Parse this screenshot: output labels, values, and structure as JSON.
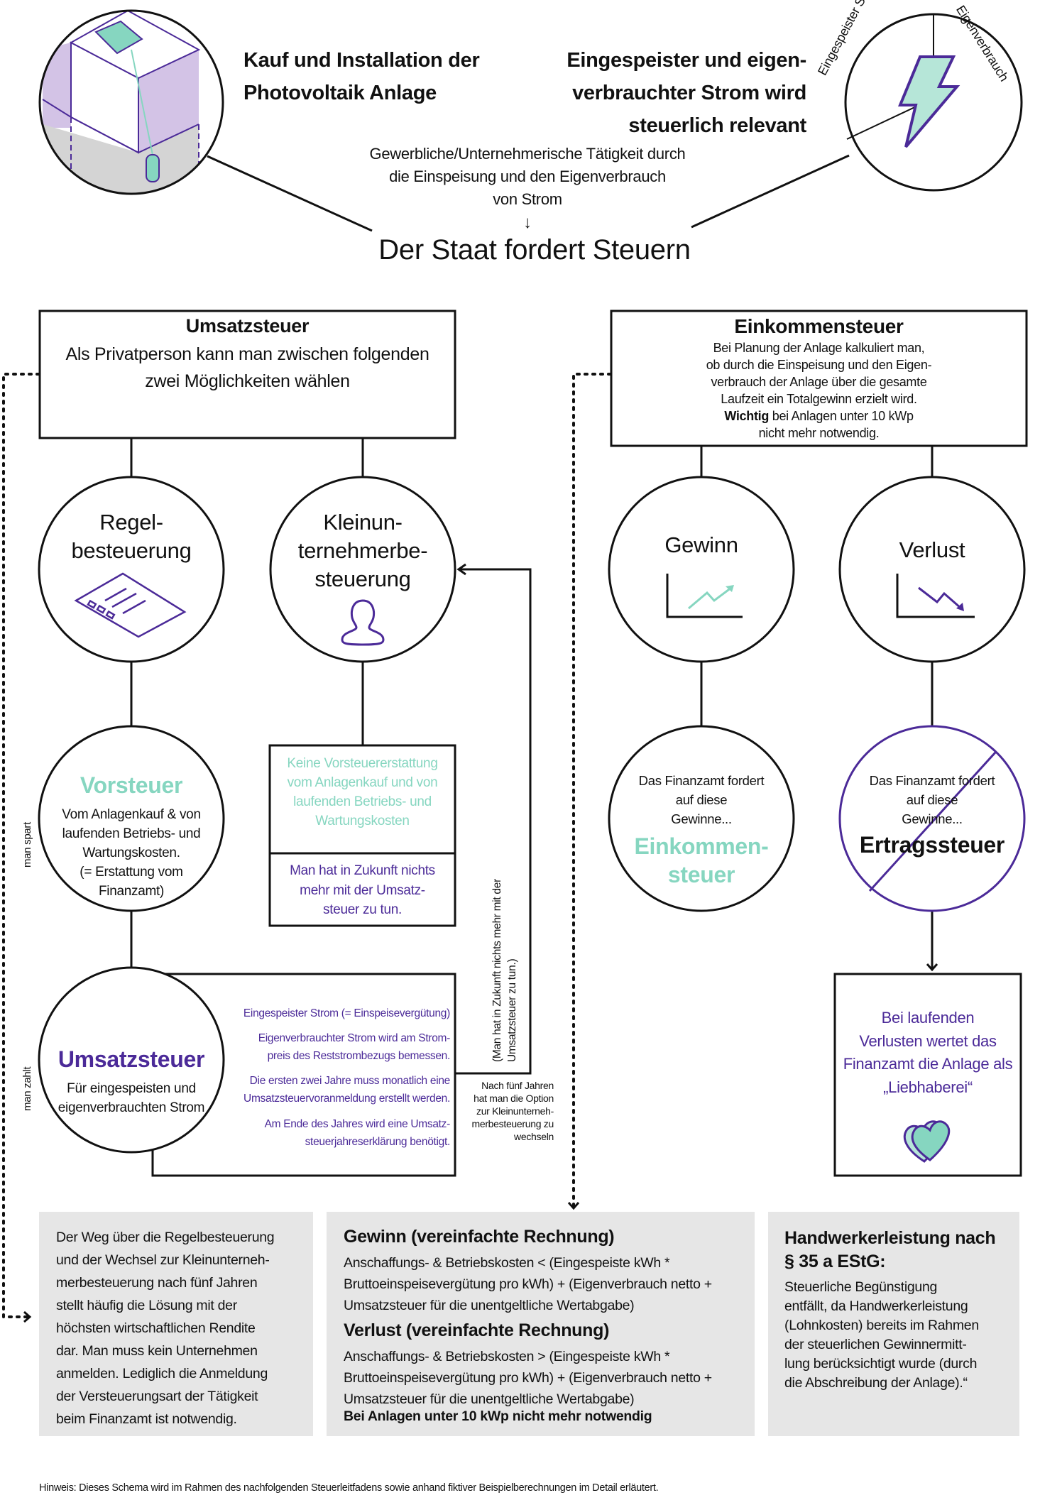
{
  "colors": {
    "teal": "#86d6c0",
    "purple": "#4b2a98",
    "light_purple": "#d3c3e6",
    "grey_box": "#e6e6e6",
    "line": "#111111"
  },
  "header": {
    "title_left": "Kauf und Installation der\nPhotovoltaik Anlage",
    "title_right": "Eingespeister und eigen-\nverbrauchter Strom wird\nsteuerlich relevant",
    "subtitle": "Gewerbliche/Unternehmerische Tätigkeit durch\ndie Einspeisung und den Eigenverbrauch\nvon Strom",
    "arrow": "↓",
    "main": "Der Staat fordert Steuern",
    "circle_left_icon": "house-solar-icon",
    "circle_right_icon": "lightning-icon",
    "circle_right_labels": {
      "left": "Eingespeister Strom",
      "right": "Eigenverbrauch"
    }
  },
  "umsatzsteuer": {
    "title": "Umsatzsteuer",
    "body": "Als Privatperson kann man zwischen folgenden\nzwei Möglichkeiten wählen",
    "regel": {
      "label": "Regel-\nbesteuerung",
      "icon": "document-icon"
    },
    "klein": {
      "label": "Kleinun-\nternehmerbe-\nsteuerung",
      "icon": "user-icon"
    },
    "vorsteuer": {
      "title": "Vorsteuer",
      "body": "Vom Anlagenkauf & von\nlaufenden Betriebs- und\nWartungskosten.\n(= Erstattung vom\nFinanzamt)",
      "side_label": "man spart"
    },
    "klein_box": {
      "top": "Keine Vorsteuererstattung\nvom Anlagenkauf und von\nlaufenden Betriebs- und\nWartungskosten",
      "bottom": "Man hat in Zukunft nichts\nmehr mit der Umsatz-\nsteuer zu tun."
    },
    "ust_circle": {
      "title": "Umsatzsteuer",
      "body": "Für eingespeisten und\neigenverbrauchten Strom",
      "side_label": "man zahlt"
    },
    "ust_list": [
      "Eingespeister Strom (= Einspeisevergütung)",
      "Eigenverbrauchter Strom wird  am Strom-\npreis des Reststrombezugs bemessen.",
      "Die ersten zwei Jahre muss monatlich eine\nUmsatzsteuervoranmeldung erstellt werden.",
      "Am Ende des Jahres wird eine Umsatz-\nsteuerjahreserklärung benötigt."
    ],
    "vertical_note": "(Man hat in Zukunft nichts mehr mit der\nUmsatzsteuer zu tun.)",
    "switch_note": "Nach fünf Jahren\nhat man die Option\nzur Kleinunterneh-\nmerbesteuerung zu\nwechseln"
  },
  "einkommensteuer": {
    "title": "Einkommensteuer",
    "body": "Bei Planung der Anlage kalkuliert man,\nob durch die Einspeisung und den Eigen-\nverbrauch der Anlage über die gesamte\nLaufzeit ein Totalgewinn erzielt wird.",
    "important_bold": "Wichtig",
    "important_rest": " bei Anlagen unter 10 kWp\nnicht mehr notwendig.",
    "gewinn": {
      "label": "Gewinn",
      "icon": "chart-up-icon"
    },
    "verlust": {
      "label": "Verlust",
      "icon": "chart-down-icon"
    },
    "gewinn_result": {
      "text": "Das Finanzamt fordert\nauf diese\nGewinne...",
      "tax": "Einkommen-\nsteuer"
    },
    "verlust_result": {
      "text": "Das Finanzamt fordert\nauf diese\nGewinne...",
      "tax": "Ertragssteuer",
      "struck": true
    },
    "liebhaberei": {
      "text": "Bei laufenden\nVerlusten wertet das\nFinanzamt die Anlage als\n„Liebhaberei“",
      "icon": "heart-icon"
    }
  },
  "bottom": {
    "box1": "Der Weg über die Regelbesteuerung\nund der Wechsel zur Kleinunterneh-\nmerbesteuerung nach fünf Jahren\nstellt häufig die Lösung mit der\nhöchsten wirtschaftlichen Rendite\ndar.  Man muss kein Unternehmen\nanmelden. Lediglich die Anmeldung\nder Versteuerungsart der Tätigkeit\nbeim Finanzamt ist notwendig.",
    "box2": {
      "gewinn_title": "Gewinn (vereinfachte Rechnung)",
      "gewinn_body": "Anschaffungs- & Betriebskosten < (Eingespeiste kWh *\nBruttoeinspeisevergütung pro kWh) + (Eigenverbrauch netto +\nUmsatzsteuer für die unentgeltliche Wertabgabe)",
      "verlust_title": "Verlust (vereinfachte Rechnung)",
      "verlust_body": "Anschaffungs- & Betriebskosten > (Eingespeiste kWh *\nBruttoeinspeisevergütung pro kWh) + (Eigenverbrauch netto +\nUmsatzsteuer für die unentgeltliche Wertabgabe)",
      "note": "Bei Anlagen unter 10 kWp nicht mehr notwendig"
    },
    "box3": {
      "title": "Handwerkerleistung nach\n§ 35 a EStG:",
      "body": "Steuerliche Begünstigung\nentfällt, da Handwerkerleistung\n(Lohnkosten) bereits im Rahmen\nder steuerlichen Gewinnermitt-\nlung berücksichtigt wurde (durch\ndie Abschreibung der Anlage).“"
    }
  },
  "footnote": "Hinweis: Dieses Schema wird im Rahmen des nachfolgenden Steuerleitfadens sowie anhand fiktiver Beispielberechnungen im Detail erläutert."
}
